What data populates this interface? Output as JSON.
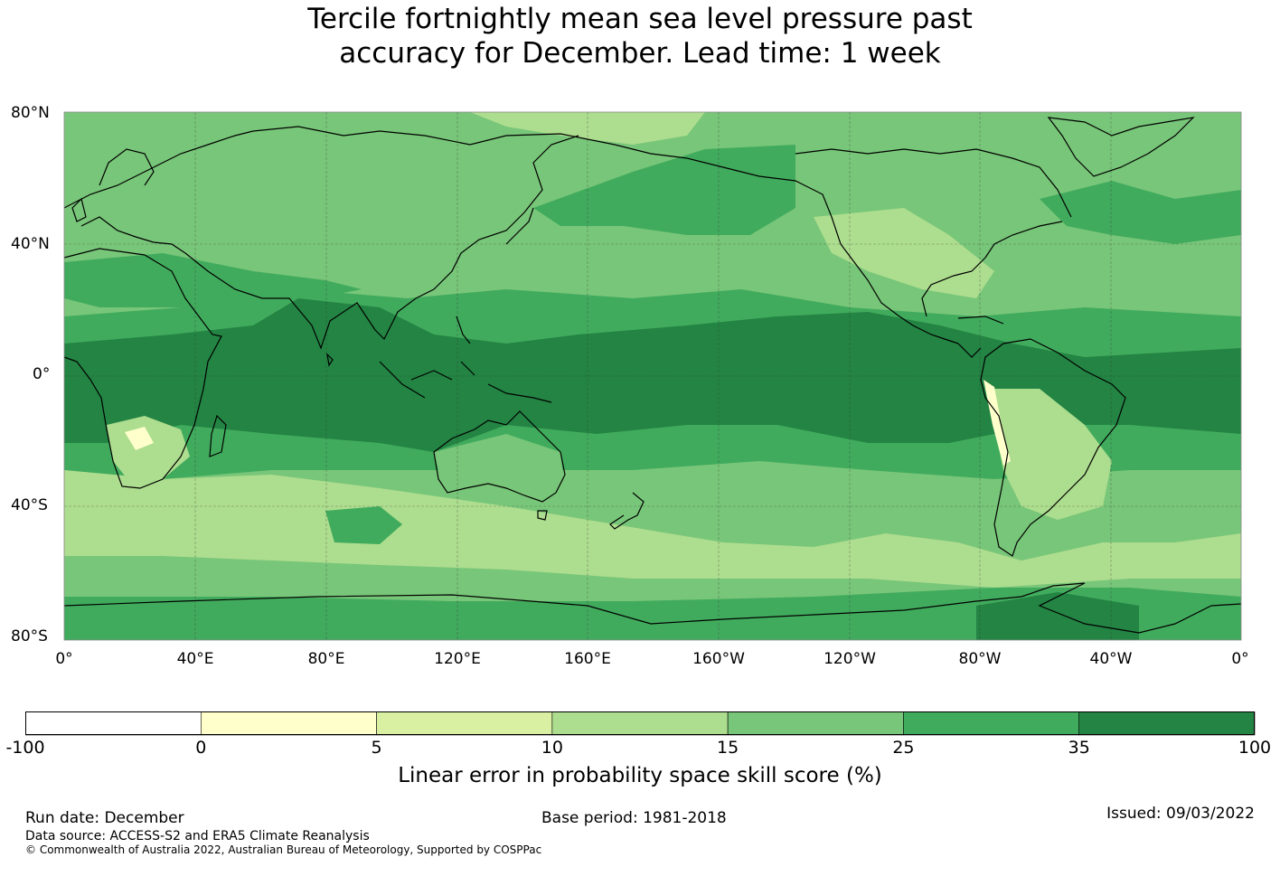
{
  "title_line1": "Tercile fortnightly mean sea level pressure past",
  "title_line2": "accuracy for December. Lead time: 1 week",
  "map": {
    "lat_labels": [
      "80°N",
      "40°N",
      "0°",
      "40°S",
      "80°S"
    ],
    "lon_labels": [
      "0°",
      "40°E",
      "80°E",
      "120°E",
      "160°E",
      "160°W",
      "120°W",
      "80°W",
      "40°W",
      "0°"
    ],
    "colors": {
      "band_0_5": "#ffffcc",
      "band_5_10": "#d9f0a3",
      "band_10_15": "#addd8e",
      "band_15_25": "#78c679",
      "band_25_35": "#41ab5d",
      "band_35_100": "#238443",
      "coastline": "#000000",
      "gridline": "#333333"
    }
  },
  "colorbar": {
    "boundaries": [
      "-100",
      "0",
      "5",
      "10",
      "15",
      "25",
      "35",
      "100"
    ],
    "colors": [
      "#ffffff",
      "#ffffcc",
      "#d9f0a3",
      "#addd8e",
      "#78c679",
      "#41ab5d",
      "#238443"
    ],
    "label": "Linear error in probability space skill score (%)"
  },
  "footer": {
    "run_date": "Run date: December",
    "base_period": "Base period: 1981-2018",
    "issued": "Issued: 09/03/2022",
    "data_source": "Data source: ACCESS-S2 and ERA5 Climate Reanalysis",
    "copyright": "© Commonwealth of Australia 2022, Australian Bureau of Meteorology, Supported by COSPPac"
  }
}
